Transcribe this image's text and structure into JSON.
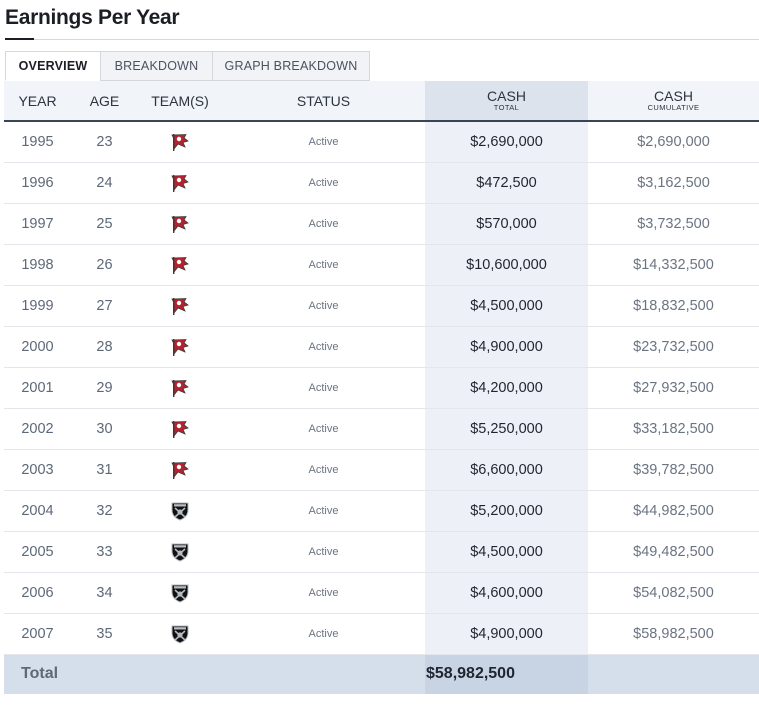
{
  "page": {
    "title": "Earnings Per Year"
  },
  "tabs": [
    {
      "label": "OVERVIEW",
      "active": true
    },
    {
      "label": "BREAKDOWN",
      "active": false
    },
    {
      "label": "GRAPH BREAKDOWN",
      "active": false
    }
  ],
  "columns": {
    "year": "YEAR",
    "age": "AGE",
    "teams": "TEAM(S)",
    "status": "STATUS",
    "cash_total": {
      "main": "CASH",
      "sub": "TOTAL"
    },
    "cash_cumulative": {
      "main": "CASH",
      "sub": "CUMULATIVE"
    }
  },
  "rows": [
    {
      "year": "1995",
      "age": "23",
      "team": "buccaneers-logo",
      "status": "Active",
      "cash_total": "$2,690,000",
      "cash_cumulative": "$2,690,000"
    },
    {
      "year": "1996",
      "age": "24",
      "team": "buccaneers-logo",
      "status": "Active",
      "cash_total": "$472,500",
      "cash_cumulative": "$3,162,500"
    },
    {
      "year": "1997",
      "age": "25",
      "team": "buccaneers-logo",
      "status": "Active",
      "cash_total": "$570,000",
      "cash_cumulative": "$3,732,500"
    },
    {
      "year": "1998",
      "age": "26",
      "team": "buccaneers-logo",
      "status": "Active",
      "cash_total": "$10,600,000",
      "cash_cumulative": "$14,332,500"
    },
    {
      "year": "1999",
      "age": "27",
      "team": "buccaneers-logo",
      "status": "Active",
      "cash_total": "$4,500,000",
      "cash_cumulative": "$18,832,500"
    },
    {
      "year": "2000",
      "age": "28",
      "team": "buccaneers-logo",
      "status": "Active",
      "cash_total": "$4,900,000",
      "cash_cumulative": "$23,732,500"
    },
    {
      "year": "2001",
      "age": "29",
      "team": "buccaneers-logo",
      "status": "Active",
      "cash_total": "$4,200,000",
      "cash_cumulative": "$27,932,500"
    },
    {
      "year": "2002",
      "age": "30",
      "team": "buccaneers-logo",
      "status": "Active",
      "cash_total": "$5,250,000",
      "cash_cumulative": "$33,182,500"
    },
    {
      "year": "2003",
      "age": "31",
      "team": "buccaneers-logo",
      "status": "Active",
      "cash_total": "$6,600,000",
      "cash_cumulative": "$39,782,500"
    },
    {
      "year": "2004",
      "age": "32",
      "team": "raiders-logo",
      "status": "Active",
      "cash_total": "$5,200,000",
      "cash_cumulative": "$44,982,500"
    },
    {
      "year": "2005",
      "age": "33",
      "team": "raiders-logo",
      "status": "Active",
      "cash_total": "$4,500,000",
      "cash_cumulative": "$49,482,500"
    },
    {
      "year": "2006",
      "age": "34",
      "team": "raiders-logo",
      "status": "Active",
      "cash_total": "$4,600,000",
      "cash_cumulative": "$54,082,500"
    },
    {
      "year": "2007",
      "age": "35",
      "team": "raiders-logo",
      "status": "Active",
      "cash_total": "$4,900,000",
      "cash_cumulative": "$58,982,500"
    }
  ],
  "total": {
    "label": "Total",
    "cash_total": "$58,982,500"
  },
  "colors": {
    "buccaneers_red": "#b5212e",
    "buccaneers_pewter": "#3d3935",
    "raiders_black": "#111111",
    "raiders_silver": "#b7bcc2",
    "header_rule": "#3a4454",
    "cash_total_column": "#edf1f7",
    "total_row": "#d5dfeb"
  }
}
